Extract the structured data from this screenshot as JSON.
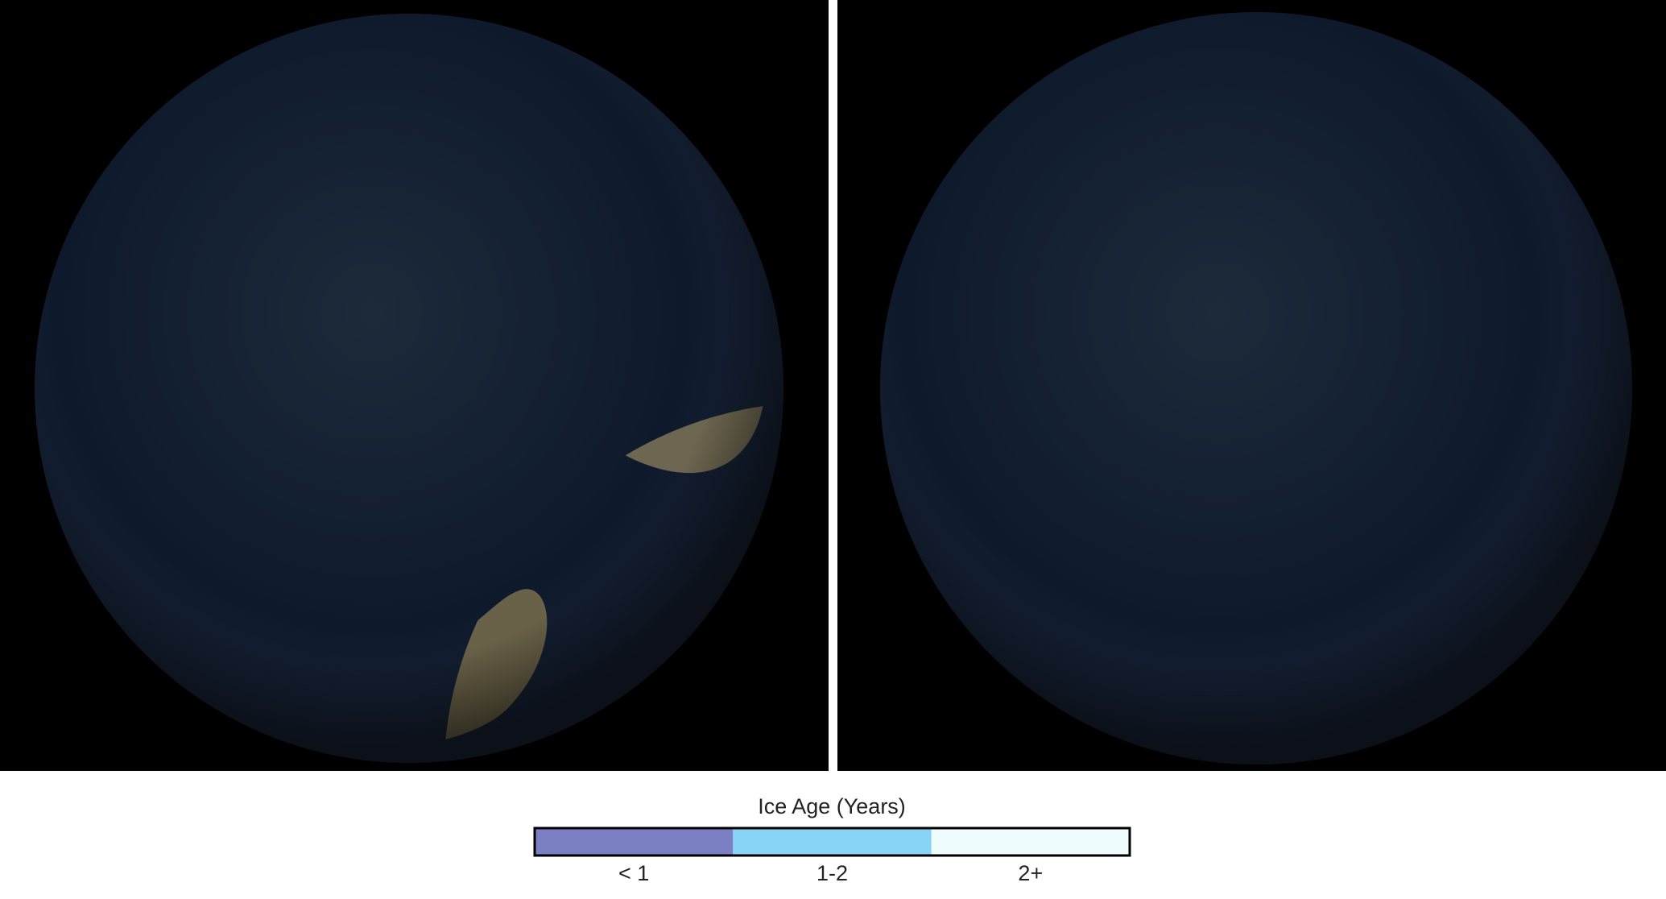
{
  "legend": {
    "title": "Ice Age (Years)",
    "items": [
      {
        "label": "< 1",
        "color": "#7b7fc4"
      },
      {
        "label": "1-2",
        "color": "#87d4f7"
      },
      {
        "label": "2+",
        "color": "#eefcfe"
      }
    ]
  }
}
